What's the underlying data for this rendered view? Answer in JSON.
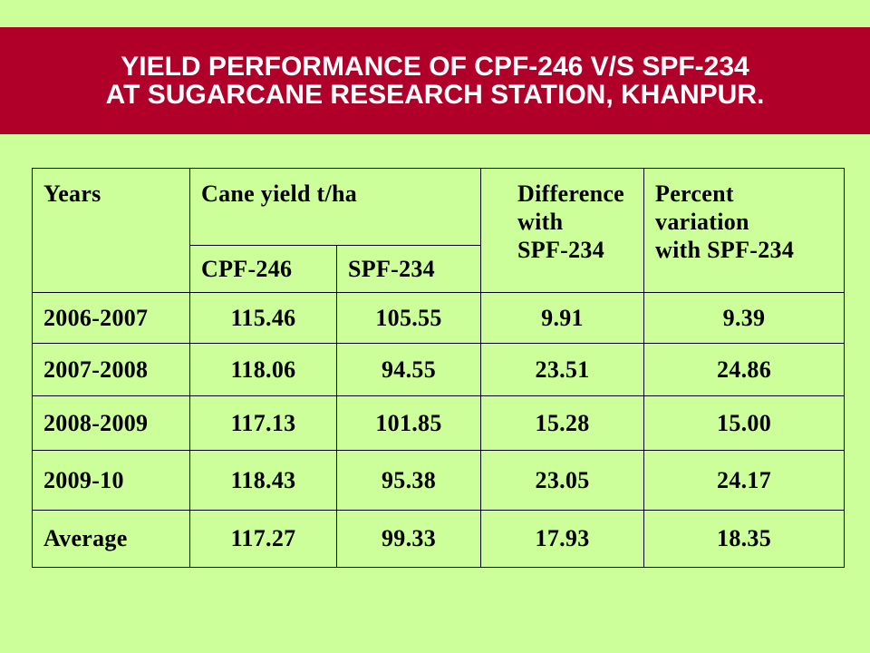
{
  "title": [
    "YIELD PERFORMANCE OF CPF-246 V/S SPF-234",
    "AT SUGARCANE RESEARCH STATION, KHANPUR."
  ],
  "table": {
    "header": [
      [
        "Years"
      ],
      [
        "Cane yield t/ha"
      ],
      [
        "Difference",
        "with",
        "SPF-234"
      ],
      [
        "Percent",
        "variation",
        "with SPF-234"
      ]
    ],
    "subheader": [
      "CPF-246",
      "SPF-234"
    ],
    "rows": [
      [
        "2006-2007",
        "115.46",
        "105.55",
        "9.91",
        "9.39"
      ],
      [
        "2007-2008",
        "118.06",
        "94.55",
        "23.51",
        "24.86"
      ],
      [
        "2008-2009",
        "117.13",
        "101.85",
        "15.28",
        "15.00"
      ],
      [
        "2009-10",
        "118.43",
        "95.38",
        "23.05",
        "24.17"
      ],
      [
        "Average",
        "117.27",
        "99.33",
        "17.93",
        "18.35"
      ]
    ]
  }
}
